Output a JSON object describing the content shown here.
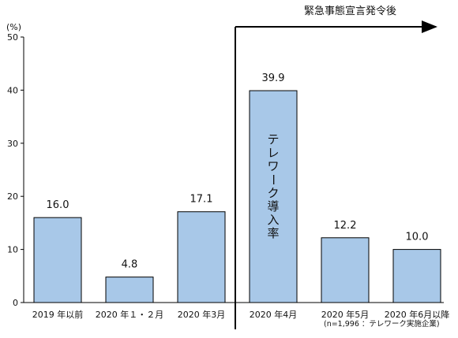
{
  "chart_data": {
    "type": "bar",
    "unit_label": "(%)",
    "categories": [
      "2019 年以前",
      "2020 年１・２月",
      "2020 年3月",
      "2020 年4月",
      "2020 年5月",
      "2020 年6月以降"
    ],
    "values": [
      16.0,
      4.8,
      17.1,
      39.9,
      12.2,
      10.0
    ],
    "value_labels": [
      "16.0",
      "4.8",
      "17.1",
      "39.9",
      "12.2",
      "10.0"
    ],
    "ylim": [
      0,
      50
    ],
    "yticks": [
      0,
      10,
      20,
      30,
      40,
      50
    ],
    "grid": false,
    "bar_color": "#a8c8e8",
    "annotations": {
      "emergency_label": "緊急事態宣言発令後",
      "highlight_bar_label": "テレワーク導入率",
      "sample_note": "(n=1,996 ：テレワーク実施企業)"
    }
  }
}
